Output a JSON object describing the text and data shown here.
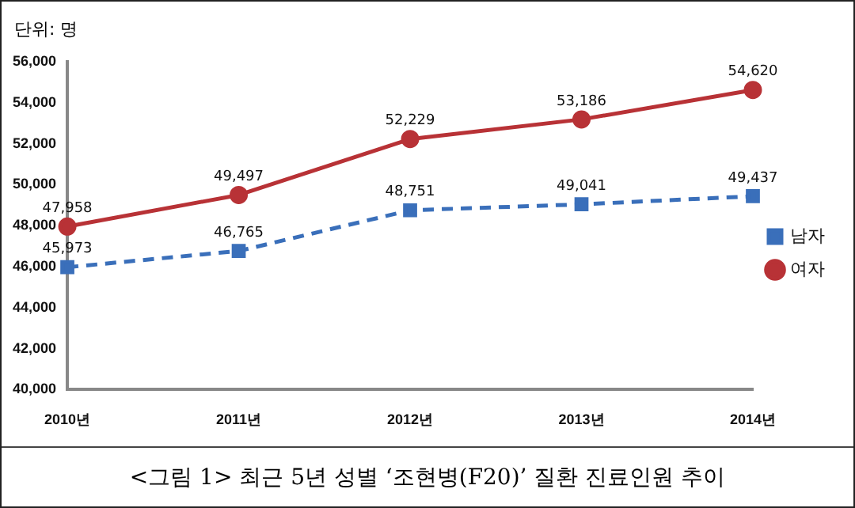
{
  "chart_data": {
    "type": "line",
    "title": "<그림 1> 최근 5년 성별 ‘조현병(F20)’ 질환 진료인원 추이",
    "ylabel": "단위: 명",
    "categories": [
      "2010년",
      "2011년",
      "2012년",
      "2013년",
      "2014년"
    ],
    "series": [
      {
        "name": "남자",
        "color": "#3a6fba",
        "values": [
          45973,
          46765,
          48751,
          49041,
          49437
        ],
        "value_labels": [
          "45,973",
          "46,765",
          "48,751",
          "49,041",
          "49,437"
        ],
        "marker": "square",
        "line_style": "dashed"
      },
      {
        "name": "여자",
        "color": "#b83236",
        "values": [
          47958,
          49497,
          52229,
          53186,
          54620
        ],
        "value_labels": [
          "47,958",
          "49,497",
          "52,229",
          "53,186",
          "54,620"
        ],
        "marker": "circle",
        "line_style": "solid"
      }
    ],
    "ylim": [
      40000,
      56000
    ],
    "yticks": [
      {
        "value": 40000,
        "label": "40,000"
      },
      {
        "value": 42000,
        "label": "42,000"
      },
      {
        "value": 44000,
        "label": "44,000"
      },
      {
        "value": 46000,
        "label": "46,000"
      },
      {
        "value": 48000,
        "label": "48,000"
      },
      {
        "value": 50000,
        "label": "50,000"
      },
      {
        "value": 52000,
        "label": "52,000"
      },
      {
        "value": 54000,
        "label": "54,000"
      },
      {
        "value": 56000,
        "label": "56,000"
      }
    ],
    "grid": false,
    "legend": "right"
  }
}
